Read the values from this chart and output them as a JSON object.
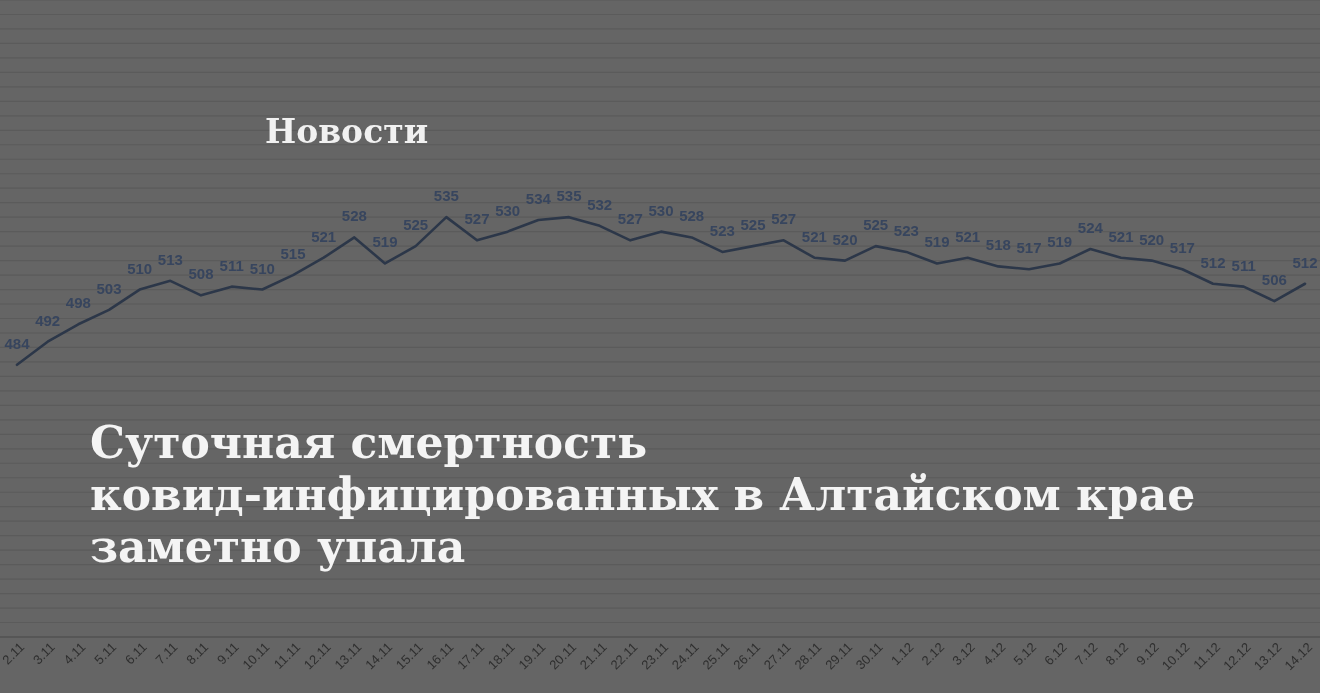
{
  "chart_data": {
    "type": "line",
    "title": "Суточная смертность\nковид-инфицированных в Алтайском крае\nзаметно упала",
    "annotations": [
      "Новости"
    ],
    "categories": [
      "2.11",
      "3.11",
      "4.11",
      "5.11",
      "6.11",
      "7.11",
      "8.11",
      "9.11",
      "10.11",
      "11.11",
      "12.11",
      "13.11",
      "14.11",
      "15.11",
      "16.11",
      "17.11",
      "18.11",
      "19.11",
      "20.11",
      "21.11",
      "22.11",
      "23.11",
      "24.11",
      "25.11",
      "26.11",
      "27.11",
      "28.11",
      "29.11",
      "30.11",
      "1.12",
      "2.12",
      "3.12",
      "4.12",
      "5.12",
      "6.12",
      "7.12",
      "8.12",
      "9.12",
      "10.12",
      "11.12",
      "12.12",
      "13.12",
      "14.12"
    ],
    "series": [
      {
        "color": "#2c3749",
        "values": [
          484,
          492,
          498,
          503,
          510,
          513,
          508,
          511,
          510,
          515,
          521,
          528,
          519,
          525,
          535,
          527,
          530,
          534,
          535,
          532,
          527,
          530,
          528,
          523,
          525,
          527,
          521,
          520,
          525,
          523,
          519,
          521,
          518,
          517,
          519,
          524,
          521,
          520,
          517,
          512,
          511,
          506,
          512
        ]
      }
    ],
    "ylim": [
      390,
      610
    ],
    "yticks": [
      {
        "value": 390,
        "label": null
      },
      {
        "value": 395,
        "label": null
      },
      {
        "value": 400,
        "label": null
      },
      {
        "value": 405,
        "label": null
      },
      {
        "value": 410,
        "label": null
      },
      {
        "value": 415,
        "label": null
      },
      {
        "value": 420,
        "label": null
      },
      {
        "value": 425,
        "label": null
      },
      {
        "value": 430,
        "label": null
      },
      {
        "value": 435,
        "label": null
      },
      {
        "value": 440,
        "label": null
      },
      {
        "value": 445,
        "label": null
      },
      {
        "value": 450,
        "label": null
      },
      {
        "value": 455,
        "label": null
      },
      {
        "value": 460,
        "label": null
      },
      {
        "value": 465,
        "label": null
      },
      {
        "value": 470,
        "label": null
      },
      {
        "value": 475,
        "label": null
      },
      {
        "value": 480,
        "label": null
      },
      {
        "value": 485,
        "label": null
      },
      {
        "value": 490,
        "label": null
      },
      {
        "value": 495,
        "label": null
      },
      {
        "value": 500,
        "label": null
      },
      {
        "value": 505,
        "label": null
      },
      {
        "value": 510,
        "label": null
      },
      {
        "value": 515,
        "label": null
      },
      {
        "value": 520,
        "label": null
      },
      {
        "value": 525,
        "label": null
      },
      {
        "value": 530,
        "label": null
      },
      {
        "value": 535,
        "label": null
      },
      {
        "value": 540,
        "label": null
      },
      {
        "value": 545,
        "label": null
      },
      {
        "value": 550,
        "label": null
      },
      {
        "value": 555,
        "label": null
      },
      {
        "value": 560,
        "label": null
      },
      {
        "value": 565,
        "label": null
      },
      {
        "value": 570,
        "label": null
      },
      {
        "value": 575,
        "label": null
      },
      {
        "value": 580,
        "label": null
      },
      {
        "value": 585,
        "label": null
      },
      {
        "value": 590,
        "label": null
      },
      {
        "value": 595,
        "label": null
      },
      {
        "value": 600,
        "label": null
      },
      {
        "value": 605,
        "label": null
      },
      {
        "value": 610,
        "label": null
      }
    ],
    "grid": "y",
    "tick_labels": "x",
    "data_labels": true
  }
}
